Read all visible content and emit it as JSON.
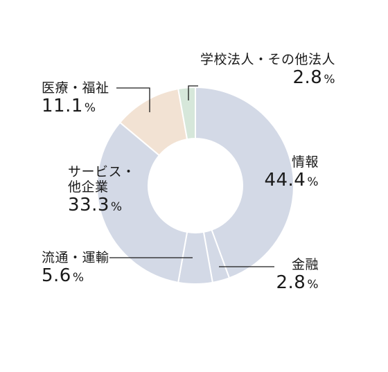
{
  "chart_data": {
    "type": "pie",
    "donut": true,
    "unit": "%",
    "slices": [
      {
        "label": "情報",
        "value": 44.4,
        "display": "44.4",
        "color": "#d3d9e6"
      },
      {
        "label": "金融",
        "value": 2.8,
        "display": "2.8",
        "color": "#d3d9e6"
      },
      {
        "label": "流通・運輸",
        "value": 5.6,
        "display": "5.6",
        "color": "#d3d9e6"
      },
      {
        "label": "サービス・他企業",
        "label_lines": [
          "サービス・",
          "他企業"
        ],
        "value": 33.3,
        "display": "33.3",
        "color": "#d3d9e6"
      },
      {
        "label": "医療・福祉",
        "value": 11.1,
        "display": "11.1",
        "color": "#f2e2d3"
      },
      {
        "label": "学校法人・その他法人",
        "value": 2.8,
        "display": "2.8",
        "color": "#d6e7da"
      }
    ],
    "legend": "none"
  }
}
